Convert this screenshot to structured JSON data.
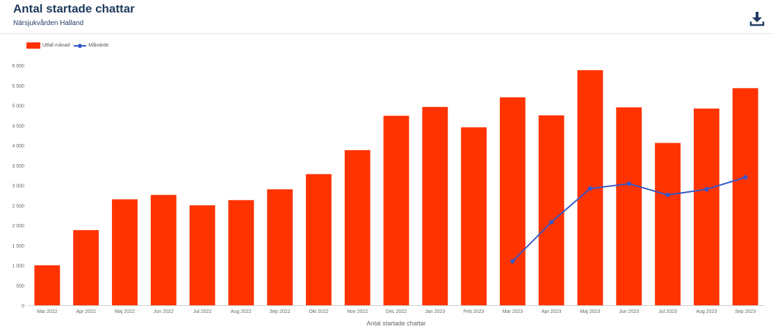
{
  "header": {
    "title": "Antal startade chattar",
    "subtitle": "Närsjukvården Halland",
    "download_icon": "download-icon"
  },
  "colors": {
    "bar": "#ff3300",
    "line": "#3557c8",
    "axis": "#cccccc",
    "text": "#666666",
    "heading": "#1f3a5f"
  },
  "chart_data": {
    "type": "bar",
    "xlabel": "Antal startade chattar",
    "ylabel": "",
    "ylim": [
      0,
      6000
    ],
    "yticks": [
      0,
      500,
      1000,
      1500,
      2000,
      2500,
      3000,
      3500,
      4000,
      4500,
      5000,
      5500,
      6000
    ],
    "ytick_labels": [
      "0",
      "500",
      "1 000",
      "1 500",
      "2 000",
      "2 500",
      "3 000",
      "3 500",
      "4 000",
      "4 500",
      "5 000",
      "5 500",
      "6 000"
    ],
    "categories": [
      "Mar 2022",
      "Apr 2022",
      "Maj 2022",
      "Jun 2022",
      "Jul 2022",
      "Aug 2022",
      "Sep 2022",
      "Okt 2022",
      "Nov 2022",
      "Dec 2022",
      "Jan 2023",
      "Feb 2023",
      "Mar 2023",
      "Apr 2023",
      "Maj 2023",
      "Jun 2023",
      "Jul 2023",
      "Aug 2023",
      "Sep 2023"
    ],
    "legend_position": "top-left",
    "grid": false,
    "series": [
      {
        "name": "Utfall månad",
        "type": "bar",
        "values": [
          1000,
          1880,
          2650,
          2760,
          2500,
          2630,
          2900,
          3280,
          3880,
          4740,
          4960,
          4450,
          5200,
          4750,
          5880,
          4950,
          4060,
          4920,
          5430
        ]
      },
      {
        "name": "Målvärde",
        "type": "line",
        "values": [
          null,
          null,
          null,
          null,
          null,
          null,
          null,
          null,
          null,
          null,
          null,
          null,
          1100,
          2080,
          2920,
          3040,
          2760,
          2900,
          3200
        ]
      }
    ]
  }
}
